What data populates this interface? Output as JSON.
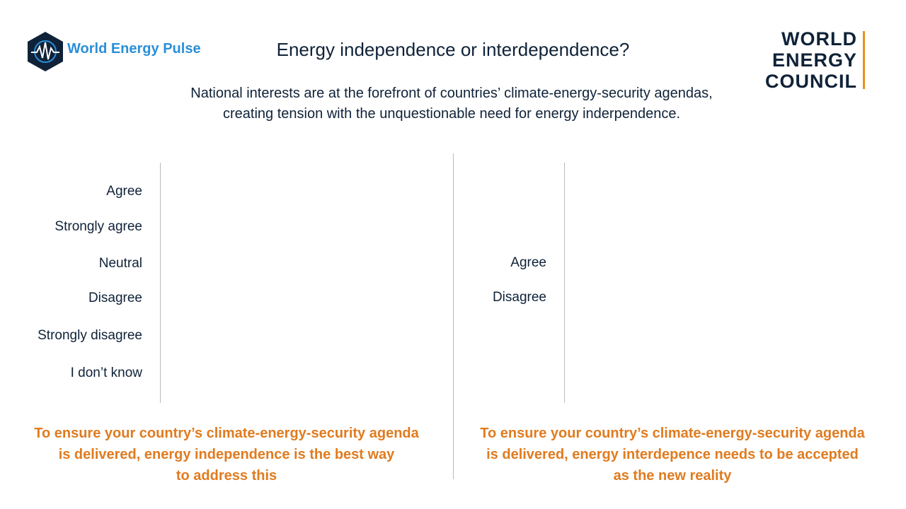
{
  "header": {
    "logo_text": "World Energy Pulse",
    "title": "Energy independence or interdependence?",
    "subtitle": [
      "National interests are at the forefront of countries’ climate-energy-security agendas,",
      "creating tension with the unquestionable need for energy inderpendence."
    ],
    "brand": [
      "WORLD",
      "ENERGY",
      "COUNCIL"
    ]
  },
  "panels": [
    {
      "labels": [
        "Agree",
        "Strongly agree",
        "Neutral",
        "Disagree",
        "Strongly disagree",
        "I don’t know"
      ],
      "caption": [
        "To ensure your country’s climate-energy-security agenda",
        "is delivered, energy independence is the best way",
        "to address this"
      ]
    },
    {
      "labels": [
        "Agree",
        "Disagree"
      ],
      "caption": [
        "To ensure your country’s climate-energy-security agenda",
        "is delivered, energy interdepence needs to be accepted",
        "as the new reality"
      ]
    }
  ]
}
